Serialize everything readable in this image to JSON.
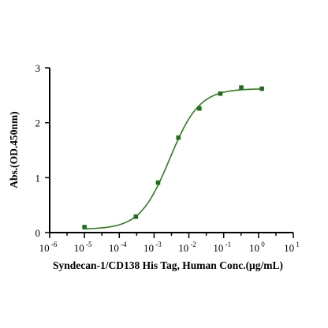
{
  "chart_data": {
    "type": "scatter",
    "xlabel": "Syndecan-1/CD138 His Tag, Human  Conc.(μg/mL)",
    "ylabel": "Abs.(OD.450nm)",
    "x_scale": "log10",
    "xlim": [
      1e-06,
      10
    ],
    "ylim": [
      0,
      3
    ],
    "x_tick_exponents": [
      -6,
      -5,
      -4,
      -3,
      -2,
      -1,
      0,
      1
    ],
    "y_ticks": [
      0,
      1,
      2,
      3
    ],
    "grid": false,
    "series": [
      {
        "points": [
          {
            "x": 1e-05,
            "y": 0.1
          },
          {
            "x": 0.0003,
            "y": 0.29
          },
          {
            "x": 0.0013,
            "y": 0.91
          },
          {
            "x": 0.005,
            "y": 1.73
          },
          {
            "x": 0.02,
            "y": 2.26
          },
          {
            "x": 0.08,
            "y": 2.53
          },
          {
            "x": 0.32,
            "y": 2.64
          },
          {
            "x": 1.25,
            "y": 2.62
          }
        ],
        "fit": {
          "model": "4PL",
          "bottom": 0.06,
          "top": 2.62,
          "ec50": 0.0028,
          "hill": 1.02
        },
        "color": "#1f6e1a"
      }
    ]
  }
}
